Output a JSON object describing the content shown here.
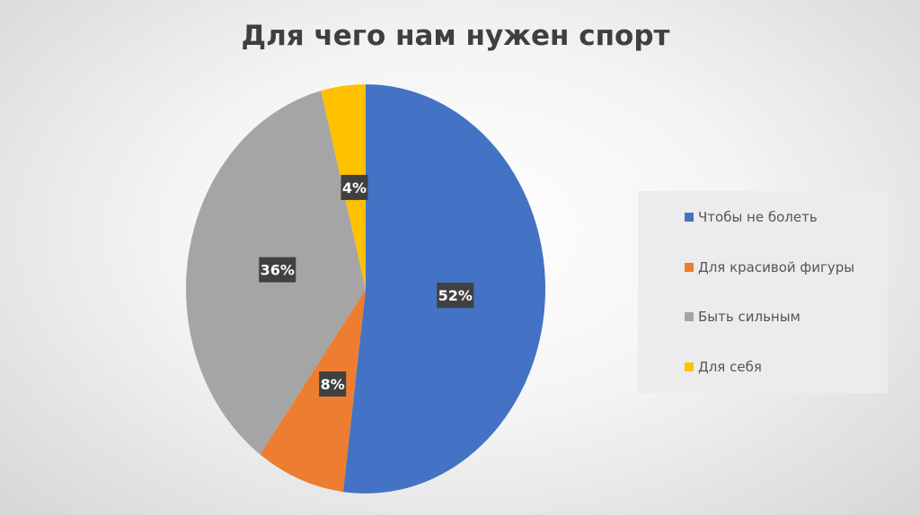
{
  "chart_data": {
    "type": "pie",
    "title": "Для чего нам нужен спорт",
    "categories": [
      "Чтобы не болеть",
      "Для красивой фигуры",
      "Быть сильным",
      "Для себя"
    ],
    "values": [
      52,
      8,
      36,
      4
    ],
    "labels": [
      "52%",
      "8%",
      "36%",
      "4%"
    ],
    "colors": [
      "#4472c4",
      "#ed7d31",
      "#a5a5a5",
      "#ffc000"
    ],
    "legend_position": "right"
  }
}
